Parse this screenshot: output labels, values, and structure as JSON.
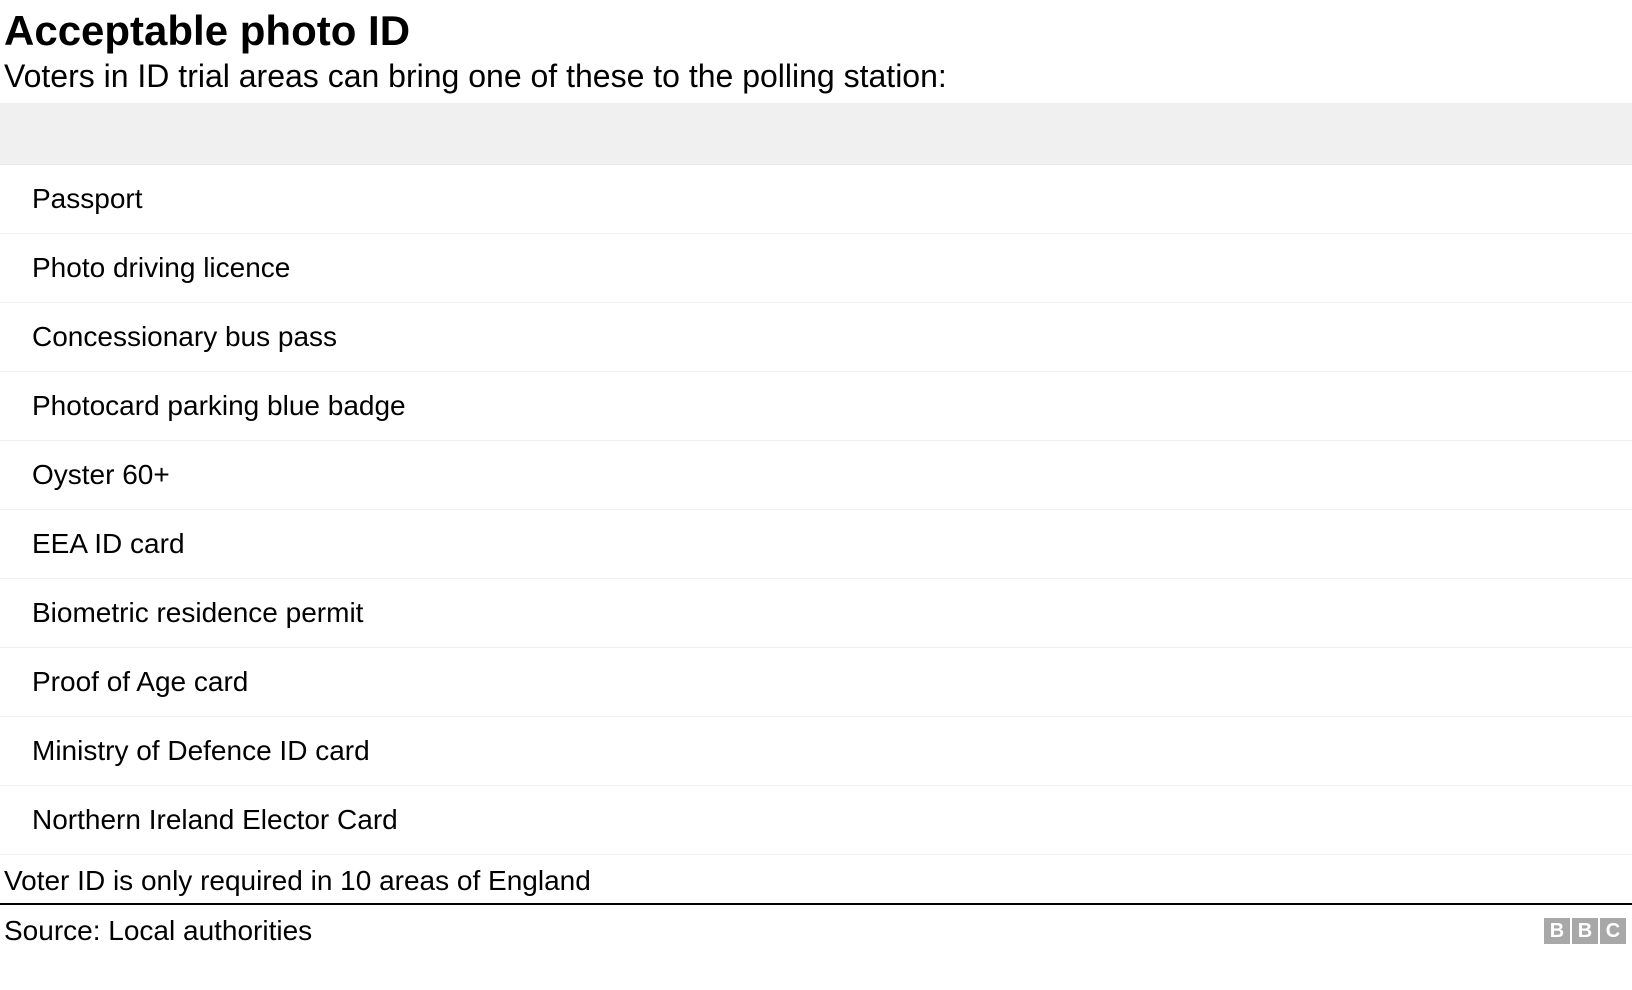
{
  "title": "Acceptable photo ID",
  "subtitle": "Voters in ID trial areas can bring one of these to the polling station:",
  "items": [
    "Passport",
    "Photo driving licence",
    "Concessionary bus pass",
    "Photocard parking blue badge",
    "Oyster 60+",
    "EEA ID card",
    "Biometric residence permit",
    "Proof of Age card",
    "Ministry of Defence ID card",
    "Northern Ireland Elector Card"
  ],
  "note": "Voter ID is only required in 10 areas of England",
  "source": "Source: Local authorities",
  "logo": {
    "letters": [
      "B",
      "B",
      "C"
    ],
    "box_color": "#a8a8a8",
    "text_color": "#ffffff"
  },
  "styling": {
    "type": "table",
    "title_fontsize": 42,
    "title_fontweight": "bold",
    "subtitle_fontsize": 32,
    "row_fontsize": 28,
    "note_fontsize": 28,
    "source_fontsize": 28,
    "background_color": "#ffffff",
    "text_color": "#000000",
    "header_row_bg": "#f0f0f0",
    "row_border_color": "#f0f0f0",
    "divider_color": "#000000",
    "row_padding_left": 32,
    "row_padding_vertical": 18,
    "header_row_height": 62,
    "font_family": "Arial, Helvetica, sans-serif"
  }
}
